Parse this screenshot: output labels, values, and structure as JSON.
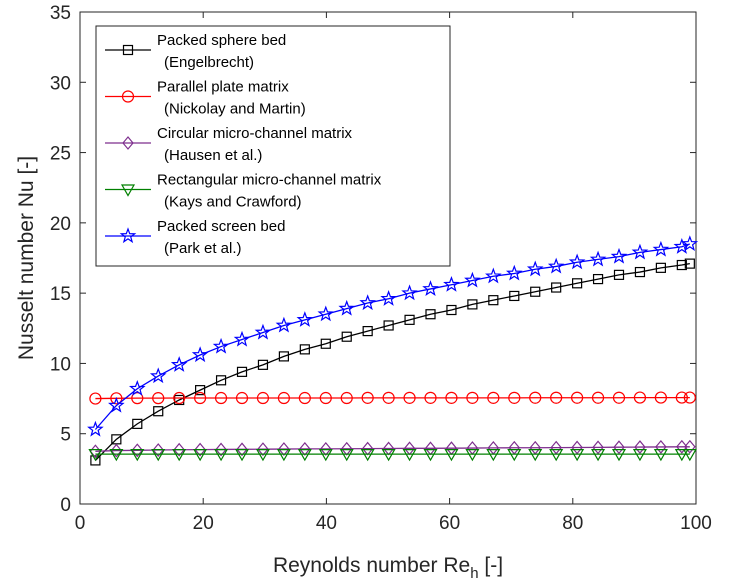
{
  "chart_data": {
    "type": "line",
    "title": "",
    "xlabel": "Reynolds number Re",
    "xlabel_subscript": "h",
    "xlabel_suffix": " [-]",
    "ylabel": "Nusselt number Nu [-]",
    "xlim": [
      0,
      100
    ],
    "ylim": [
      0,
      35
    ],
    "xticks": [
      "0",
      "20",
      "40",
      "60",
      "80",
      "100"
    ],
    "yticks": [
      "0",
      "5",
      "10",
      "15",
      "20",
      "25",
      "30",
      "35"
    ],
    "grid": false,
    "legend_position": "top-left",
    "x": [
      2.5,
      5.9,
      9.3,
      12.7,
      16.1,
      19.5,
      22.9,
      26.3,
      29.7,
      33.1,
      36.5,
      39.9,
      43.3,
      46.7,
      50.1,
      53.5,
      56.9,
      60.3,
      63.7,
      67.1,
      70.5,
      73.9,
      77.3,
      80.7,
      84.1,
      87.5,
      90.9,
      94.3,
      97.7,
      99.0
    ],
    "series": [
      {
        "name": "Packed sphere bed",
        "name_line2": "(Engelbrecht)",
        "color": "#000000",
        "marker": "square",
        "values": [
          3.1,
          4.6,
          5.7,
          6.6,
          7.4,
          8.1,
          8.8,
          9.4,
          9.9,
          10.5,
          11.0,
          11.4,
          11.9,
          12.3,
          12.7,
          13.1,
          13.5,
          13.8,
          14.2,
          14.5,
          14.8,
          15.1,
          15.4,
          15.7,
          16.0,
          16.3,
          16.5,
          16.8,
          17.0,
          17.1
        ]
      },
      {
        "name": "Parallel plate matrix",
        "name_line2": "(Nickolay and Martin)",
        "color": "#ff0000",
        "marker": "circle",
        "values": [
          7.5,
          7.52,
          7.53,
          7.53,
          7.54,
          7.54,
          7.54,
          7.54,
          7.54,
          7.54,
          7.54,
          7.54,
          7.54,
          7.55,
          7.55,
          7.55,
          7.55,
          7.55,
          7.55,
          7.55,
          7.55,
          7.56,
          7.56,
          7.56,
          7.56,
          7.56,
          7.57,
          7.57,
          7.57,
          7.57
        ]
      },
      {
        "name": "Circular micro-channel matrix",
        "name_line2": "(Hausen et al.)",
        "color": "#7e2f8e",
        "marker": "diamond",
        "values": [
          3.75,
          3.8,
          3.82,
          3.84,
          3.86,
          3.87,
          3.88,
          3.89,
          3.9,
          3.91,
          3.92,
          3.92,
          3.93,
          3.94,
          3.95,
          3.96,
          3.96,
          3.97,
          3.98,
          3.99,
          4.0,
          4.0,
          4.01,
          4.02,
          4.03,
          4.04,
          4.05,
          4.06,
          4.07,
          4.07
        ]
      },
      {
        "name": "Rectangular micro-channel matrix",
        "name_line2": "(Kays and Crawford)",
        "color": "#008000",
        "marker": "triangle-down",
        "values": [
          3.55,
          3.55,
          3.55,
          3.55,
          3.55,
          3.55,
          3.55,
          3.55,
          3.55,
          3.55,
          3.55,
          3.55,
          3.55,
          3.55,
          3.55,
          3.55,
          3.55,
          3.55,
          3.55,
          3.55,
          3.55,
          3.55,
          3.55,
          3.55,
          3.55,
          3.55,
          3.55,
          3.55,
          3.55,
          3.55
        ]
      },
      {
        "name": "Packed screen bed",
        "name_line2": "(Park et al.)",
        "color": "#0000ff",
        "marker": "star",
        "values": [
          5.3,
          7.0,
          8.2,
          9.1,
          9.9,
          10.6,
          11.2,
          11.7,
          12.2,
          12.7,
          13.1,
          13.5,
          13.9,
          14.3,
          14.6,
          15.0,
          15.3,
          15.6,
          15.9,
          16.2,
          16.4,
          16.7,
          16.9,
          17.2,
          17.4,
          17.6,
          17.9,
          18.1,
          18.3,
          18.5
        ]
      }
    ]
  }
}
